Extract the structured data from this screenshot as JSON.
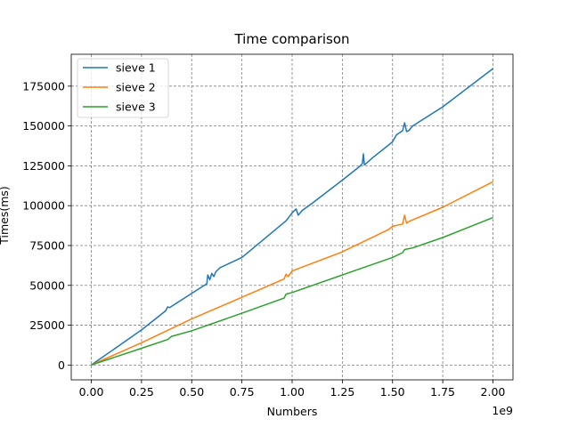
{
  "chart_data": {
    "type": "line",
    "title": "Time comparison",
    "xlabel": "Numbers",
    "ylabel": "Times(ms)",
    "x_offset_label": "1e9",
    "xlim": [
      -0.1,
      2.1
    ],
    "ylim": [
      -9300,
      195000
    ],
    "x_ticks": [
      0.0,
      0.25,
      0.5,
      0.75,
      1.0,
      1.25,
      1.5,
      1.75,
      2.0
    ],
    "x_tick_labels": [
      "0.00",
      "0.25",
      "0.50",
      "0.75",
      "1.00",
      "1.25",
      "1.50",
      "1.75",
      "2.00"
    ],
    "y_ticks": [
      0,
      25000,
      50000,
      75000,
      100000,
      125000,
      150000,
      175000
    ],
    "y_tick_labels": [
      "0",
      "25000",
      "50000",
      "75000",
      "100000",
      "125000",
      "150000",
      "175000"
    ],
    "grid": true,
    "legend_position": "top-left",
    "series": [
      {
        "name": "sieve 1",
        "color": "#1f77b4",
        "x": [
          0.0,
          0.25,
          0.37,
          0.38,
          0.39,
          0.5,
          0.575,
          0.58,
          0.59,
          0.6,
          0.61,
          0.62,
          0.64,
          0.75,
          0.97,
          1.0,
          1.02,
          1.03,
          1.05,
          1.1,
          1.25,
          1.34,
          1.35,
          1.355,
          1.36,
          1.4,
          1.5,
          1.52,
          1.55,
          1.56,
          1.57,
          1.58,
          1.6,
          1.75,
          2.0
        ],
        "y": [
          0,
          22000,
          34000,
          36500,
          36000,
          45000,
          51000,
          56500,
          53500,
          57500,
          55500,
          58500,
          61000,
          67500,
          90500,
          95500,
          98000,
          94000,
          97000,
          101500,
          116000,
          125000,
          126500,
          132500,
          125500,
          130000,
          140000,
          144500,
          147000,
          152000,
          146500,
          147000,
          150000,
          162000,
          186000
        ]
      },
      {
        "name": "sieve 2",
        "color": "#ff7f0e",
        "x": [
          0.0,
          0.25,
          0.5,
          0.75,
          0.96,
          0.97,
          0.98,
          1.0,
          1.25,
          1.48,
          1.5,
          1.55,
          1.56,
          1.57,
          1.58,
          1.75,
          2.0
        ],
        "y": [
          0,
          14000,
          29000,
          42500,
          54000,
          57000,
          55500,
          59000,
          71000,
          85000,
          87000,
          88500,
          94000,
          89000,
          90000,
          99000,
          115000
        ]
      },
      {
        "name": "sieve 3",
        "color": "#2ca02c",
        "x": [
          0.0,
          0.25,
          0.38,
          0.4,
          0.5,
          0.75,
          0.96,
          0.97,
          1.0,
          1.25,
          1.5,
          1.55,
          1.56,
          1.6,
          1.75,
          2.0
        ],
        "y": [
          0,
          10500,
          16000,
          18000,
          21500,
          32500,
          42000,
          44500,
          45500,
          56500,
          67500,
          70500,
          72500,
          73500,
          80000,
          92500
        ]
      }
    ]
  }
}
